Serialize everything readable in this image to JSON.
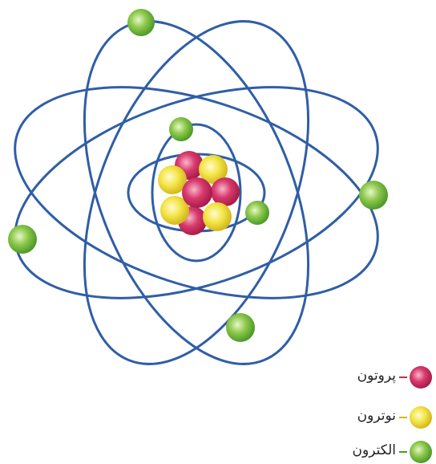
{
  "legend": [
    {
      "label": "پروتون"
    },
    {
      "label": "نوترون"
    },
    {
      "label": "الکترون"
    }
  ]
}
